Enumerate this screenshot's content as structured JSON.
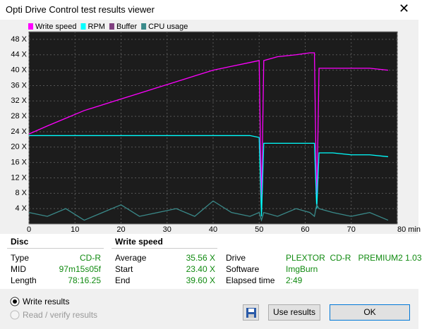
{
  "window": {
    "title": "Opti Drive Control test results viewer"
  },
  "chart_data": {
    "type": "line",
    "x": [
      0,
      4,
      8,
      12,
      16,
      20,
      24,
      28,
      32,
      36,
      40,
      44,
      48,
      50,
      50.5,
      51,
      54,
      58,
      61,
      62,
      62.5,
      63,
      66,
      70,
      74,
      78
    ],
    "series": [
      {
        "name": "Write speed",
        "color": "#ff00ff",
        "values": [
          23.4,
          25.5,
          27.5,
          29.5,
          31,
          32.5,
          34,
          35.5,
          37,
          38.5,
          40,
          41,
          42,
          42.5,
          4,
          42.5,
          43.5,
          44,
          44.5,
          44.5,
          4,
          40.5,
          40.5,
          40.5,
          40.5,
          40
        ]
      },
      {
        "name": "RPM",
        "color": "#00ffff",
        "values": [
          23,
          23,
          23,
          23,
          23,
          23,
          23,
          23,
          23,
          23,
          23,
          23,
          23,
          22.5,
          2,
          21,
          21,
          21,
          21,
          21,
          4,
          18.5,
          18.5,
          18,
          18,
          17.5
        ]
      },
      {
        "name": "Buffer",
        "color": "#804080",
        "values": [
          null,
          null,
          null,
          null,
          null,
          null,
          null,
          null,
          null,
          null,
          null,
          null,
          null,
          null,
          null,
          null,
          null,
          null,
          null,
          null,
          null,
          null,
          null,
          null,
          null,
          null
        ]
      },
      {
        "name": "CPU usage",
        "color": "#3a8a8a",
        "values": [
          3,
          2,
          4,
          1,
          3,
          5,
          2,
          3,
          4,
          2,
          6,
          3,
          2,
          3,
          1,
          3,
          2,
          4,
          3,
          2,
          5,
          4,
          3,
          2,
          3,
          1
        ]
      }
    ],
    "xlim": [
      0,
      80
    ],
    "ylim": [
      0,
      50
    ],
    "xticks": [
      0,
      10,
      20,
      30,
      40,
      50,
      60,
      70,
      {
        "value": 80,
        "label": "80 min"
      }
    ],
    "yticks": [
      {
        "value": 4,
        "label": "4 X"
      },
      {
        "value": 8,
        "label": "8 X"
      },
      {
        "value": 12,
        "label": "12 X"
      },
      {
        "value": 16,
        "label": "16 X"
      },
      {
        "value": 20,
        "label": "20 X"
      },
      {
        "value": 24,
        "label": "24 X"
      },
      {
        "value": 28,
        "label": "28 X"
      },
      {
        "value": 32,
        "label": "32 X"
      },
      {
        "value": 36,
        "label": "36 X"
      },
      {
        "value": 40,
        "label": "40 X"
      },
      {
        "value": 44,
        "label": "44 X"
      },
      {
        "value": 48,
        "label": "48 X"
      }
    ],
    "grid": true
  },
  "summary": {
    "disc": {
      "header": "Disc",
      "type_label": "Type",
      "type": "CD-R",
      "mid_label": "MID",
      "mid": "97m15s05f",
      "length_label": "Length",
      "length": "78:16.25"
    },
    "write_speed": {
      "header": "Write speed",
      "average_label": "Average",
      "average": "35.56 X",
      "start_label": "Start",
      "start": "23.40 X",
      "end_label": "End",
      "end": "39.60 X"
    },
    "drive": {
      "drive_label": "Drive",
      "drive": "PLEXTOR  CD-R   PREMIUM2 1.03",
      "software_label": "Software",
      "software": "ImgBurn",
      "elapsed_label": "Elapsed time",
      "elapsed": "2:49"
    }
  },
  "controls": {
    "write_results": "Write results",
    "read_results": "Read / verify results",
    "use_results": "Use results",
    "ok": "OK"
  }
}
